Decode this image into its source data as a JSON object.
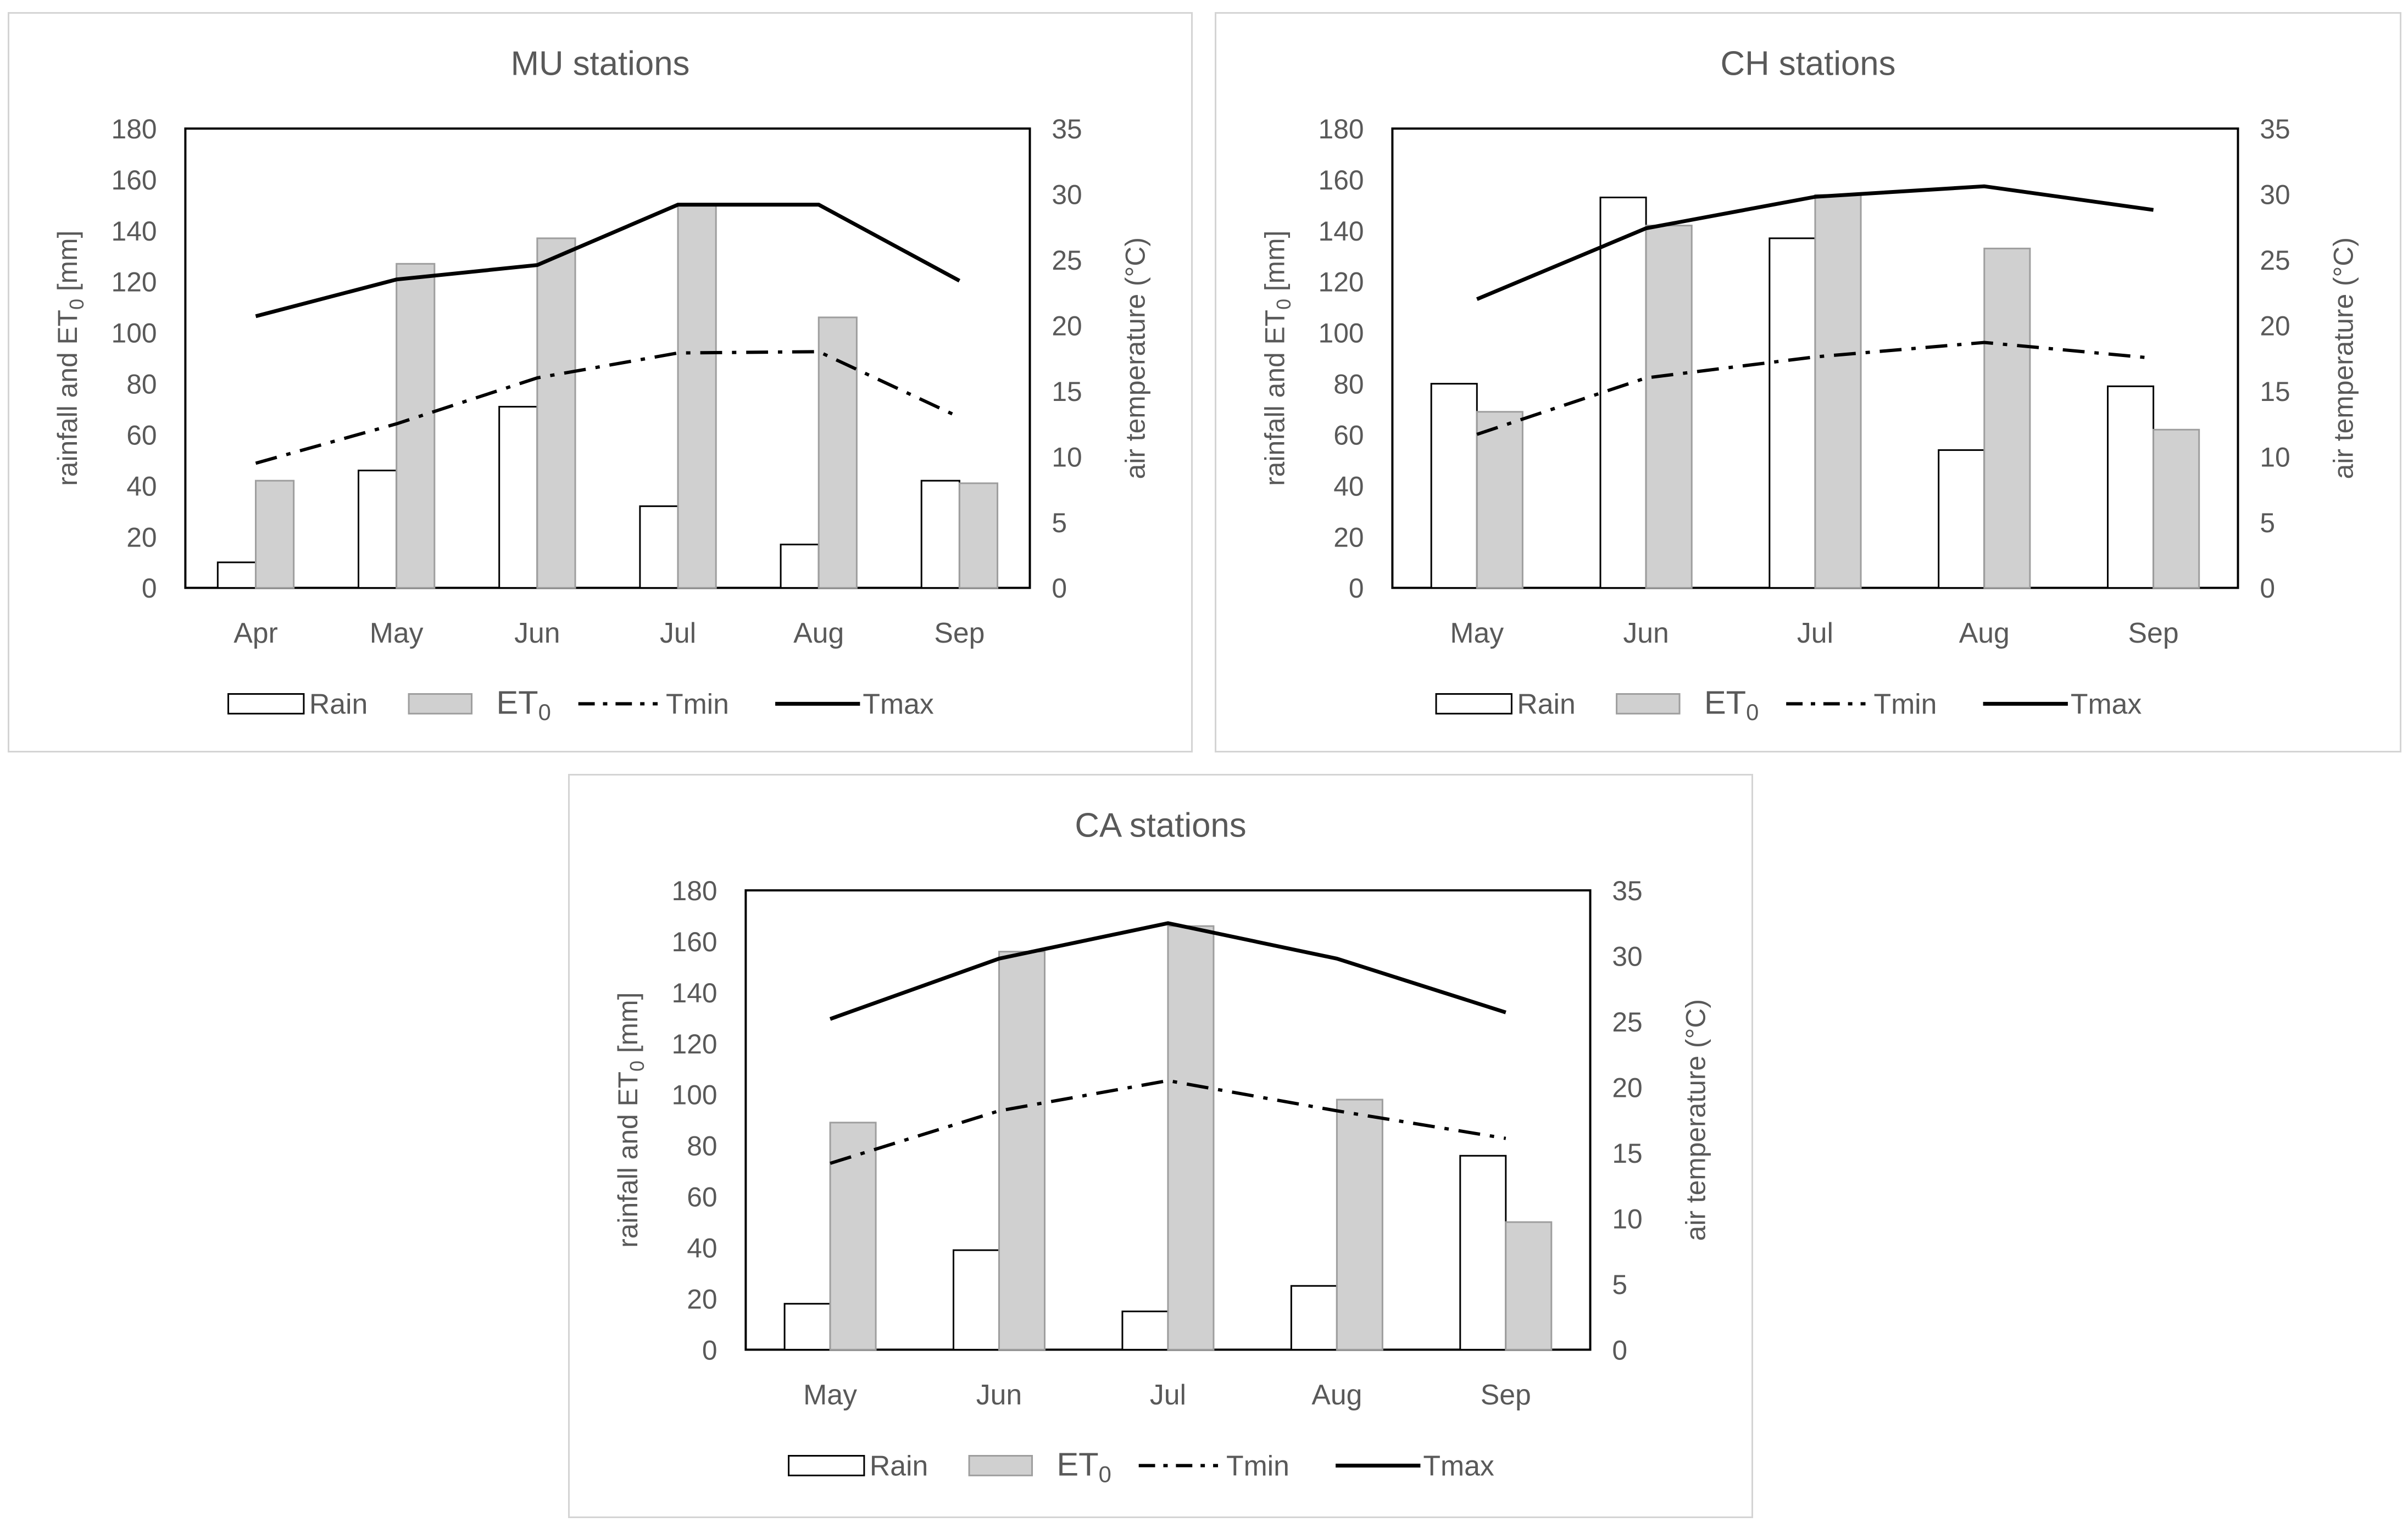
{
  "legend": {
    "rain": "Rain",
    "et0_base": "ET",
    "et0_sub": "0",
    "tmin": "Tmin",
    "tmax": "Tmax"
  },
  "colors": {
    "rain_fill": "#ffffff",
    "bar_stroke": "#000000",
    "et0_fill": "#d0d0d0",
    "et0_stroke": "#9e9e9e",
    "line": "#000000",
    "text": "#595959",
    "panel_border": "#d4d4d4"
  },
  "chart_data": [
    {
      "type": "bar",
      "title": "MU stations",
      "categories": [
        "Apr",
        "May",
        "Jun",
        "Jul",
        "Aug",
        "Sep"
      ],
      "series": [
        {
          "name": "Rain",
          "kind": "bar",
          "axis": "left",
          "values": [
            10,
            46,
            71,
            32,
            17,
            42
          ]
        },
        {
          "name": "ET0",
          "kind": "bar",
          "axis": "left",
          "values": [
            42,
            127,
            137,
            150,
            106,
            41
          ]
        },
        {
          "name": "Tmin",
          "kind": "line",
          "style": "dash-dot",
          "axis": "right",
          "values": [
            9.5,
            12.5,
            16,
            17.9,
            18,
            13
          ]
        },
        {
          "name": "Tmax",
          "kind": "line",
          "style": "solid",
          "axis": "right",
          "values": [
            20.7,
            23.5,
            24.6,
            29.2,
            29.2,
            23.4
          ]
        }
      ],
      "ylabel": "rainfall and ET0 [mm]",
      "ylabel_base": "rainfall and ET",
      "ylabel_sub": "0",
      "ylabel_tail": " [mm]",
      "ylim": [
        0,
        180
      ],
      "yticks": [
        "0",
        "20",
        "40",
        "60",
        "80",
        "100",
        "120",
        "140",
        "160",
        "180"
      ],
      "y2label": "air temperature (°C)",
      "y2lim": [
        0,
        35
      ],
      "y2ticks": [
        "0",
        "5",
        "10",
        "15",
        "20",
        "25",
        "30",
        "35"
      ],
      "grid": false,
      "legend_position": "bottom"
    },
    {
      "type": "bar",
      "title": "CH stations",
      "categories": [
        "May",
        "Jun",
        "Jul",
        "Aug",
        "Sep"
      ],
      "series": [
        {
          "name": "Rain",
          "kind": "bar",
          "axis": "left",
          "values": [
            80,
            153,
            137,
            54,
            79
          ]
        },
        {
          "name": "ET0",
          "kind": "bar",
          "axis": "left",
          "values": [
            69,
            142,
            154,
            133,
            62
          ]
        },
        {
          "name": "Tmin",
          "kind": "line",
          "style": "dash-dot",
          "axis": "right",
          "values": [
            11.7,
            16,
            17.6,
            18.7,
            17.5
          ]
        },
        {
          "name": "Tmax",
          "kind": "line",
          "style": "solid",
          "axis": "right",
          "values": [
            22,
            27.4,
            29.8,
            30.6,
            28.8
          ]
        }
      ],
      "ylabel": "rainfall and ET0 [mm]",
      "ylabel_base": "rainfall and ET",
      "ylabel_sub": "0",
      "ylabel_tail": " [mm]",
      "ylim": [
        0,
        180
      ],
      "yticks": [
        "0",
        "20",
        "40",
        "60",
        "80",
        "100",
        "120",
        "140",
        "160",
        "180"
      ],
      "y2label": "air temperature (°C)",
      "y2lim": [
        0,
        35
      ],
      "y2ticks": [
        "0",
        "5",
        "10",
        "15",
        "20",
        "25",
        "30",
        "35"
      ],
      "grid": false,
      "legend_position": "bottom"
    },
    {
      "type": "bar",
      "title": "CA stations",
      "categories": [
        "May",
        "Jun",
        "Jul",
        "Aug",
        "Sep"
      ],
      "series": [
        {
          "name": "Rain",
          "kind": "bar",
          "axis": "left",
          "values": [
            18,
            39,
            15,
            25,
            76
          ]
        },
        {
          "name": "ET0",
          "kind": "bar",
          "axis": "left",
          "values": [
            89,
            156,
            166,
            98,
            50
          ]
        },
        {
          "name": "Tmin",
          "kind": "line",
          "style": "dash-dot",
          "axis": "right",
          "values": [
            14.2,
            18.2,
            20.5,
            18.2,
            16.1
          ]
        },
        {
          "name": "Tmax",
          "kind": "line",
          "style": "solid",
          "axis": "right",
          "values": [
            25.2,
            29.8,
            32.5,
            29.8,
            25.7
          ]
        }
      ],
      "ylabel": "rainfall and ET0 [mm]",
      "ylabel_base": "rainfall and ET",
      "ylabel_sub": "0",
      "ylabel_tail": " [mm]",
      "ylim": [
        0,
        180
      ],
      "yticks": [
        "0",
        "20",
        "40",
        "60",
        "80",
        "100",
        "120",
        "140",
        "160",
        "180"
      ],
      "y2label": "air temperature (°C)",
      "y2lim": [
        0,
        35
      ],
      "y2ticks": [
        "0",
        "5",
        "10",
        "15",
        "20",
        "25",
        "30",
        "35"
      ],
      "grid": false,
      "legend_position": "bottom"
    }
  ]
}
